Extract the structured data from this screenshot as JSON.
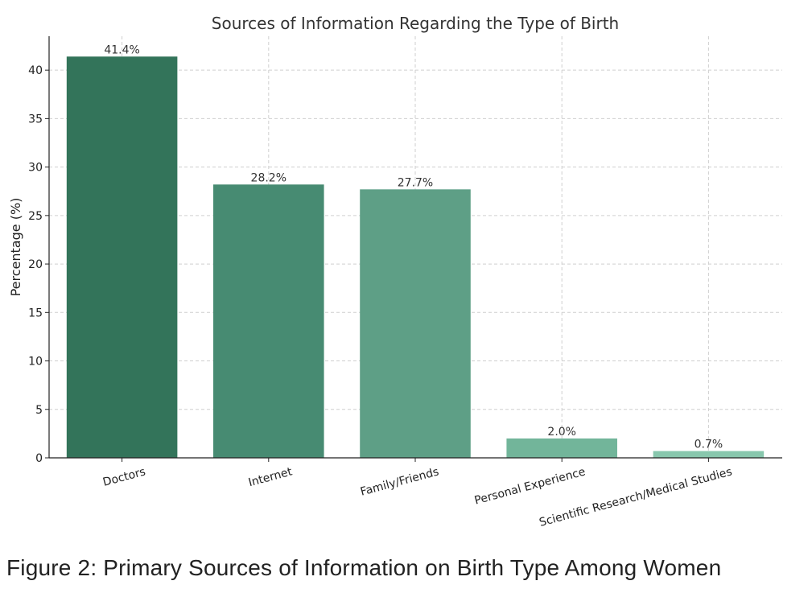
{
  "chart_data": {
    "type": "bar",
    "title": "Sources of Information Regarding the Type of Birth",
    "xlabel": "",
    "ylabel": "Percentage (%)",
    "categories": [
      "Doctors",
      "Internet",
      "Family/Friends",
      "Personal Experience",
      "Scientific Research/Medical Studies"
    ],
    "values": [
      41.4,
      28.2,
      27.7,
      2.0,
      0.7
    ],
    "value_labels": [
      "41.4%",
      "28.2%",
      "27.7%",
      "2.0%",
      "0.7%"
    ],
    "bar_colors": [
      "#33745a",
      "#478b72",
      "#5e9f86",
      "#72b59a",
      "#88c7ad"
    ],
    "yticks": [
      0,
      5,
      10,
      15,
      20,
      25,
      30,
      35,
      40
    ],
    "ylim": [
      0,
      43.5
    ],
    "grid": true,
    "legend": "none"
  },
  "caption": "Figure 2: Primary Sources of Information on Birth Type Among Women"
}
